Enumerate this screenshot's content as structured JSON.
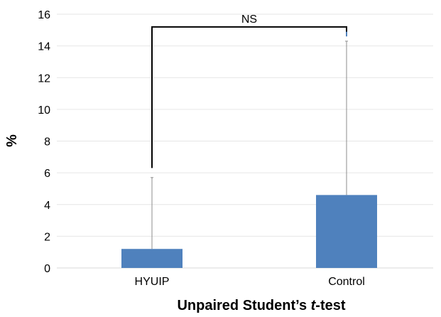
{
  "chart_data": {
    "type": "bar",
    "categories": [
      "HYUIP",
      "Control"
    ],
    "values": [
      1.2,
      4.6
    ],
    "error_upper": [
      5.7,
      14.3
    ],
    "xlabel": "Unpaired Student’s ",
    "xlabel_italic": "t",
    "xlabel_suffix": "-test",
    "ylabel": "%",
    "ylim": [
      0,
      16
    ],
    "yticks": [
      "0",
      "2",
      "4",
      "6",
      "8",
      "10",
      "12",
      "14",
      "16"
    ],
    "grid": true,
    "bar_color": "#4f81bd",
    "annotation": {
      "text": "NS",
      "bracket_y": 15.2
    }
  }
}
